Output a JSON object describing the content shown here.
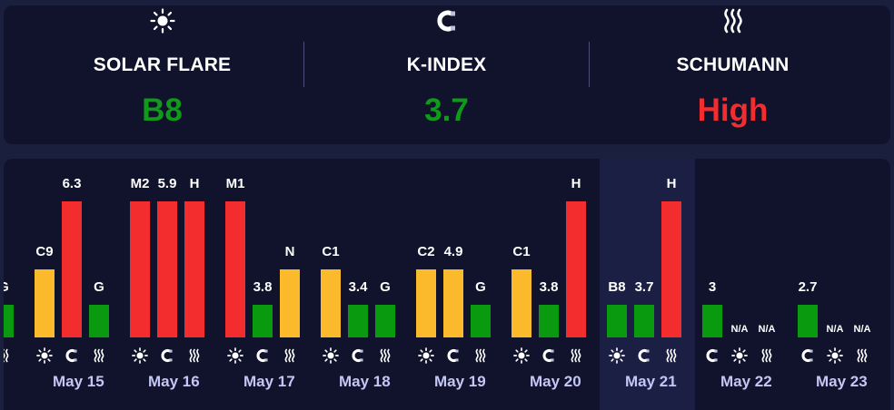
{
  "summary": {
    "solar": {
      "label": "SOLAR FLARE",
      "value": "B8",
      "icon": "sun-icon",
      "color": "#0f9a1a"
    },
    "kindex": {
      "label": "K-INDEX",
      "value": "3.7",
      "icon": "magnet-icon",
      "color": "#0f9a1a"
    },
    "schumann": {
      "label": "SCHUMANN",
      "value": "High",
      "icon": "wave-icon",
      "color": "#f32d2d"
    }
  },
  "colors": {
    "yellow": "#fbb92c",
    "red": "#f32d2d",
    "green": "#0a9a10"
  },
  "days": [
    {
      "date": "",
      "highlight": false,
      "bars": [
        {
          "type": "none"
        },
        {
          "type": "none"
        },
        {
          "type": "schumann",
          "label": "G",
          "color": "green",
          "level": 0.24
        }
      ]
    },
    {
      "date": "May 15",
      "highlight": false,
      "bars": [
        {
          "type": "solar",
          "label": "C9",
          "color": "yellow",
          "level": 0.5
        },
        {
          "type": "kindex",
          "label": "6.3",
          "color": "red",
          "level": 1.0
        },
        {
          "type": "schumann",
          "label": "G",
          "color": "green",
          "level": 0.24
        }
      ]
    },
    {
      "date": "May 16",
      "highlight": false,
      "bars": [
        {
          "type": "solar",
          "label": "M2",
          "color": "red",
          "level": 1.0
        },
        {
          "type": "kindex",
          "label": "5.9",
          "color": "red",
          "level": 1.0
        },
        {
          "type": "schumann",
          "label": "H",
          "color": "red",
          "level": 1.0
        }
      ]
    },
    {
      "date": "May 17",
      "highlight": false,
      "bars": [
        {
          "type": "solar",
          "label": "M1",
          "color": "red",
          "level": 1.0
        },
        {
          "type": "kindex",
          "label": "3.8",
          "color": "green",
          "level": 0.24
        },
        {
          "type": "schumann",
          "label": "N",
          "color": "yellow",
          "level": 0.5
        }
      ]
    },
    {
      "date": "May 18",
      "highlight": false,
      "bars": [
        {
          "type": "solar",
          "label": "C1",
          "color": "yellow",
          "level": 0.5
        },
        {
          "type": "kindex",
          "label": "3.4",
          "color": "green",
          "level": 0.24
        },
        {
          "type": "schumann",
          "label": "G",
          "color": "green",
          "level": 0.24
        }
      ]
    },
    {
      "date": "May 19",
      "highlight": false,
      "bars": [
        {
          "type": "solar",
          "label": "C2",
          "color": "yellow",
          "level": 0.5
        },
        {
          "type": "kindex",
          "label": "4.9",
          "color": "yellow",
          "level": 0.5
        },
        {
          "type": "schumann",
          "label": "G",
          "color": "green",
          "level": 0.24
        }
      ]
    },
    {
      "date": "May 20",
      "highlight": false,
      "bars": [
        {
          "type": "solar",
          "label": "C1",
          "color": "yellow",
          "level": 0.5
        },
        {
          "type": "kindex",
          "label": "3.8",
          "color": "green",
          "level": 0.24
        },
        {
          "type": "schumann",
          "label": "H",
          "color": "red",
          "level": 1.0
        }
      ]
    },
    {
      "date": "May 21",
      "highlight": true,
      "bars": [
        {
          "type": "solar",
          "label": "B8",
          "color": "green",
          "level": 0.24
        },
        {
          "type": "kindex",
          "label": "3.7",
          "color": "green",
          "level": 0.24
        },
        {
          "type": "schumann",
          "label": "H",
          "color": "red",
          "level": 1.0
        }
      ]
    },
    {
      "date": "May 22",
      "highlight": false,
      "bars": [
        {
          "type": "kindex",
          "label": "3",
          "color": "green",
          "level": 0.24
        },
        {
          "type": "solar",
          "label": "N/A",
          "color": "none",
          "level": 0
        },
        {
          "type": "schumann",
          "label": "N/A",
          "color": "none",
          "level": 0
        }
      ]
    },
    {
      "date": "May 23",
      "highlight": false,
      "bars": [
        {
          "type": "kindex",
          "label": "2.7",
          "color": "green",
          "level": 0.24
        },
        {
          "type": "solar",
          "label": "N/A",
          "color": "none",
          "level": 0
        },
        {
          "type": "schumann",
          "label": "N/A",
          "color": "none",
          "level": 0
        }
      ]
    }
  ]
}
